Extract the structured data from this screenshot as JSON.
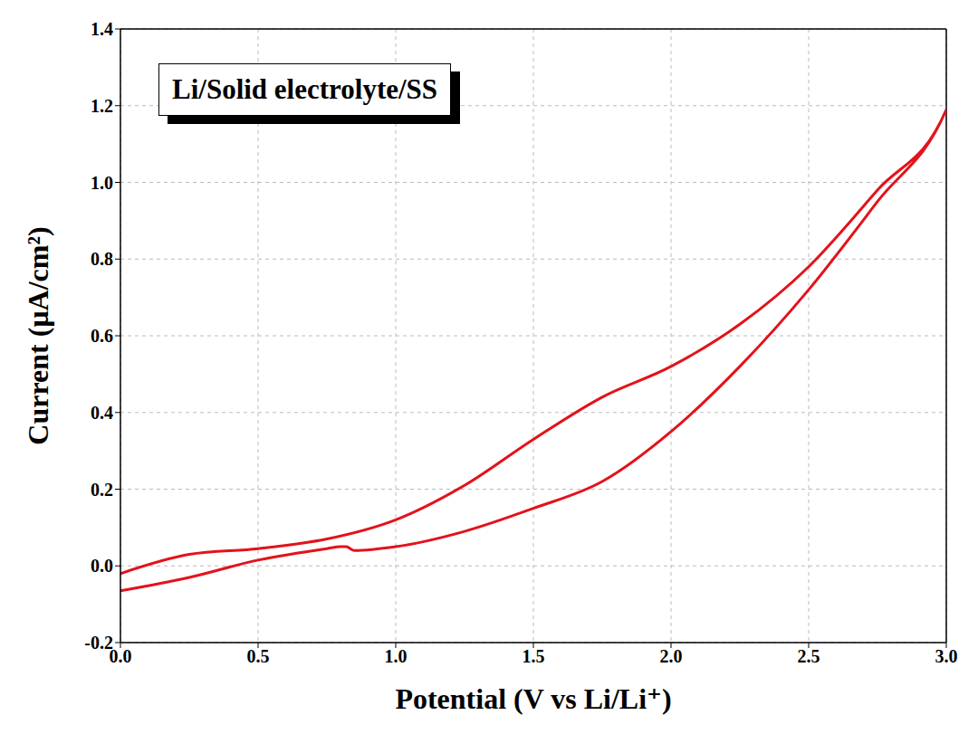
{
  "chart_data": {
    "type": "line",
    "annotation": "Li/Solid electrolyte/SS",
    "x_label": "Potential (V vs Li/Li⁺)",
    "y_label": "Current (μA/cm²)",
    "x": [
      0.0,
      0.25,
      0.5,
      0.75,
      0.8,
      0.82,
      0.85,
      1.0,
      1.25,
      1.5,
      1.75,
      2.0,
      2.25,
      2.5,
      2.75,
      3.0,
      2.75,
      2.5,
      2.25,
      2.0,
      1.75,
      1.5,
      1.25,
      1.0,
      0.75,
      0.5,
      0.25,
      0.0
    ],
    "series": [
      {
        "name": "Li/Solid electrolyte/SS",
        "color": "#e3121b",
        "values": [
          -0.065,
          -0.03,
          0.015,
          0.045,
          0.05,
          0.05,
          0.04,
          0.05,
          0.09,
          0.15,
          0.22,
          0.35,
          0.52,
          0.72,
          0.95,
          1.19,
          0.98,
          0.78,
          0.63,
          0.52,
          0.44,
          0.33,
          0.21,
          0.12,
          0.07,
          0.045,
          0.03,
          -0.02
        ]
      }
    ],
    "xlim": [
      0,
      3
    ],
    "xticks": [
      {
        "value": 0,
        "label": "0.0"
      },
      0.5,
      {
        "value": 1,
        "label": "1.0"
      },
      1.5,
      {
        "value": 2,
        "label": "2.0"
      },
      2.5,
      {
        "value": 3,
        "label": "3.0"
      }
    ],
    "ylim": [
      -0.2,
      1.4
    ],
    "yticks": [
      -0.2,
      {
        "value": 0,
        "label": "0.0"
      },
      0.2,
      0.4,
      0.6,
      0.8,
      {
        "value": 1,
        "label": "1.0"
      },
      1.2,
      1.4
    ],
    "grid": true
  }
}
